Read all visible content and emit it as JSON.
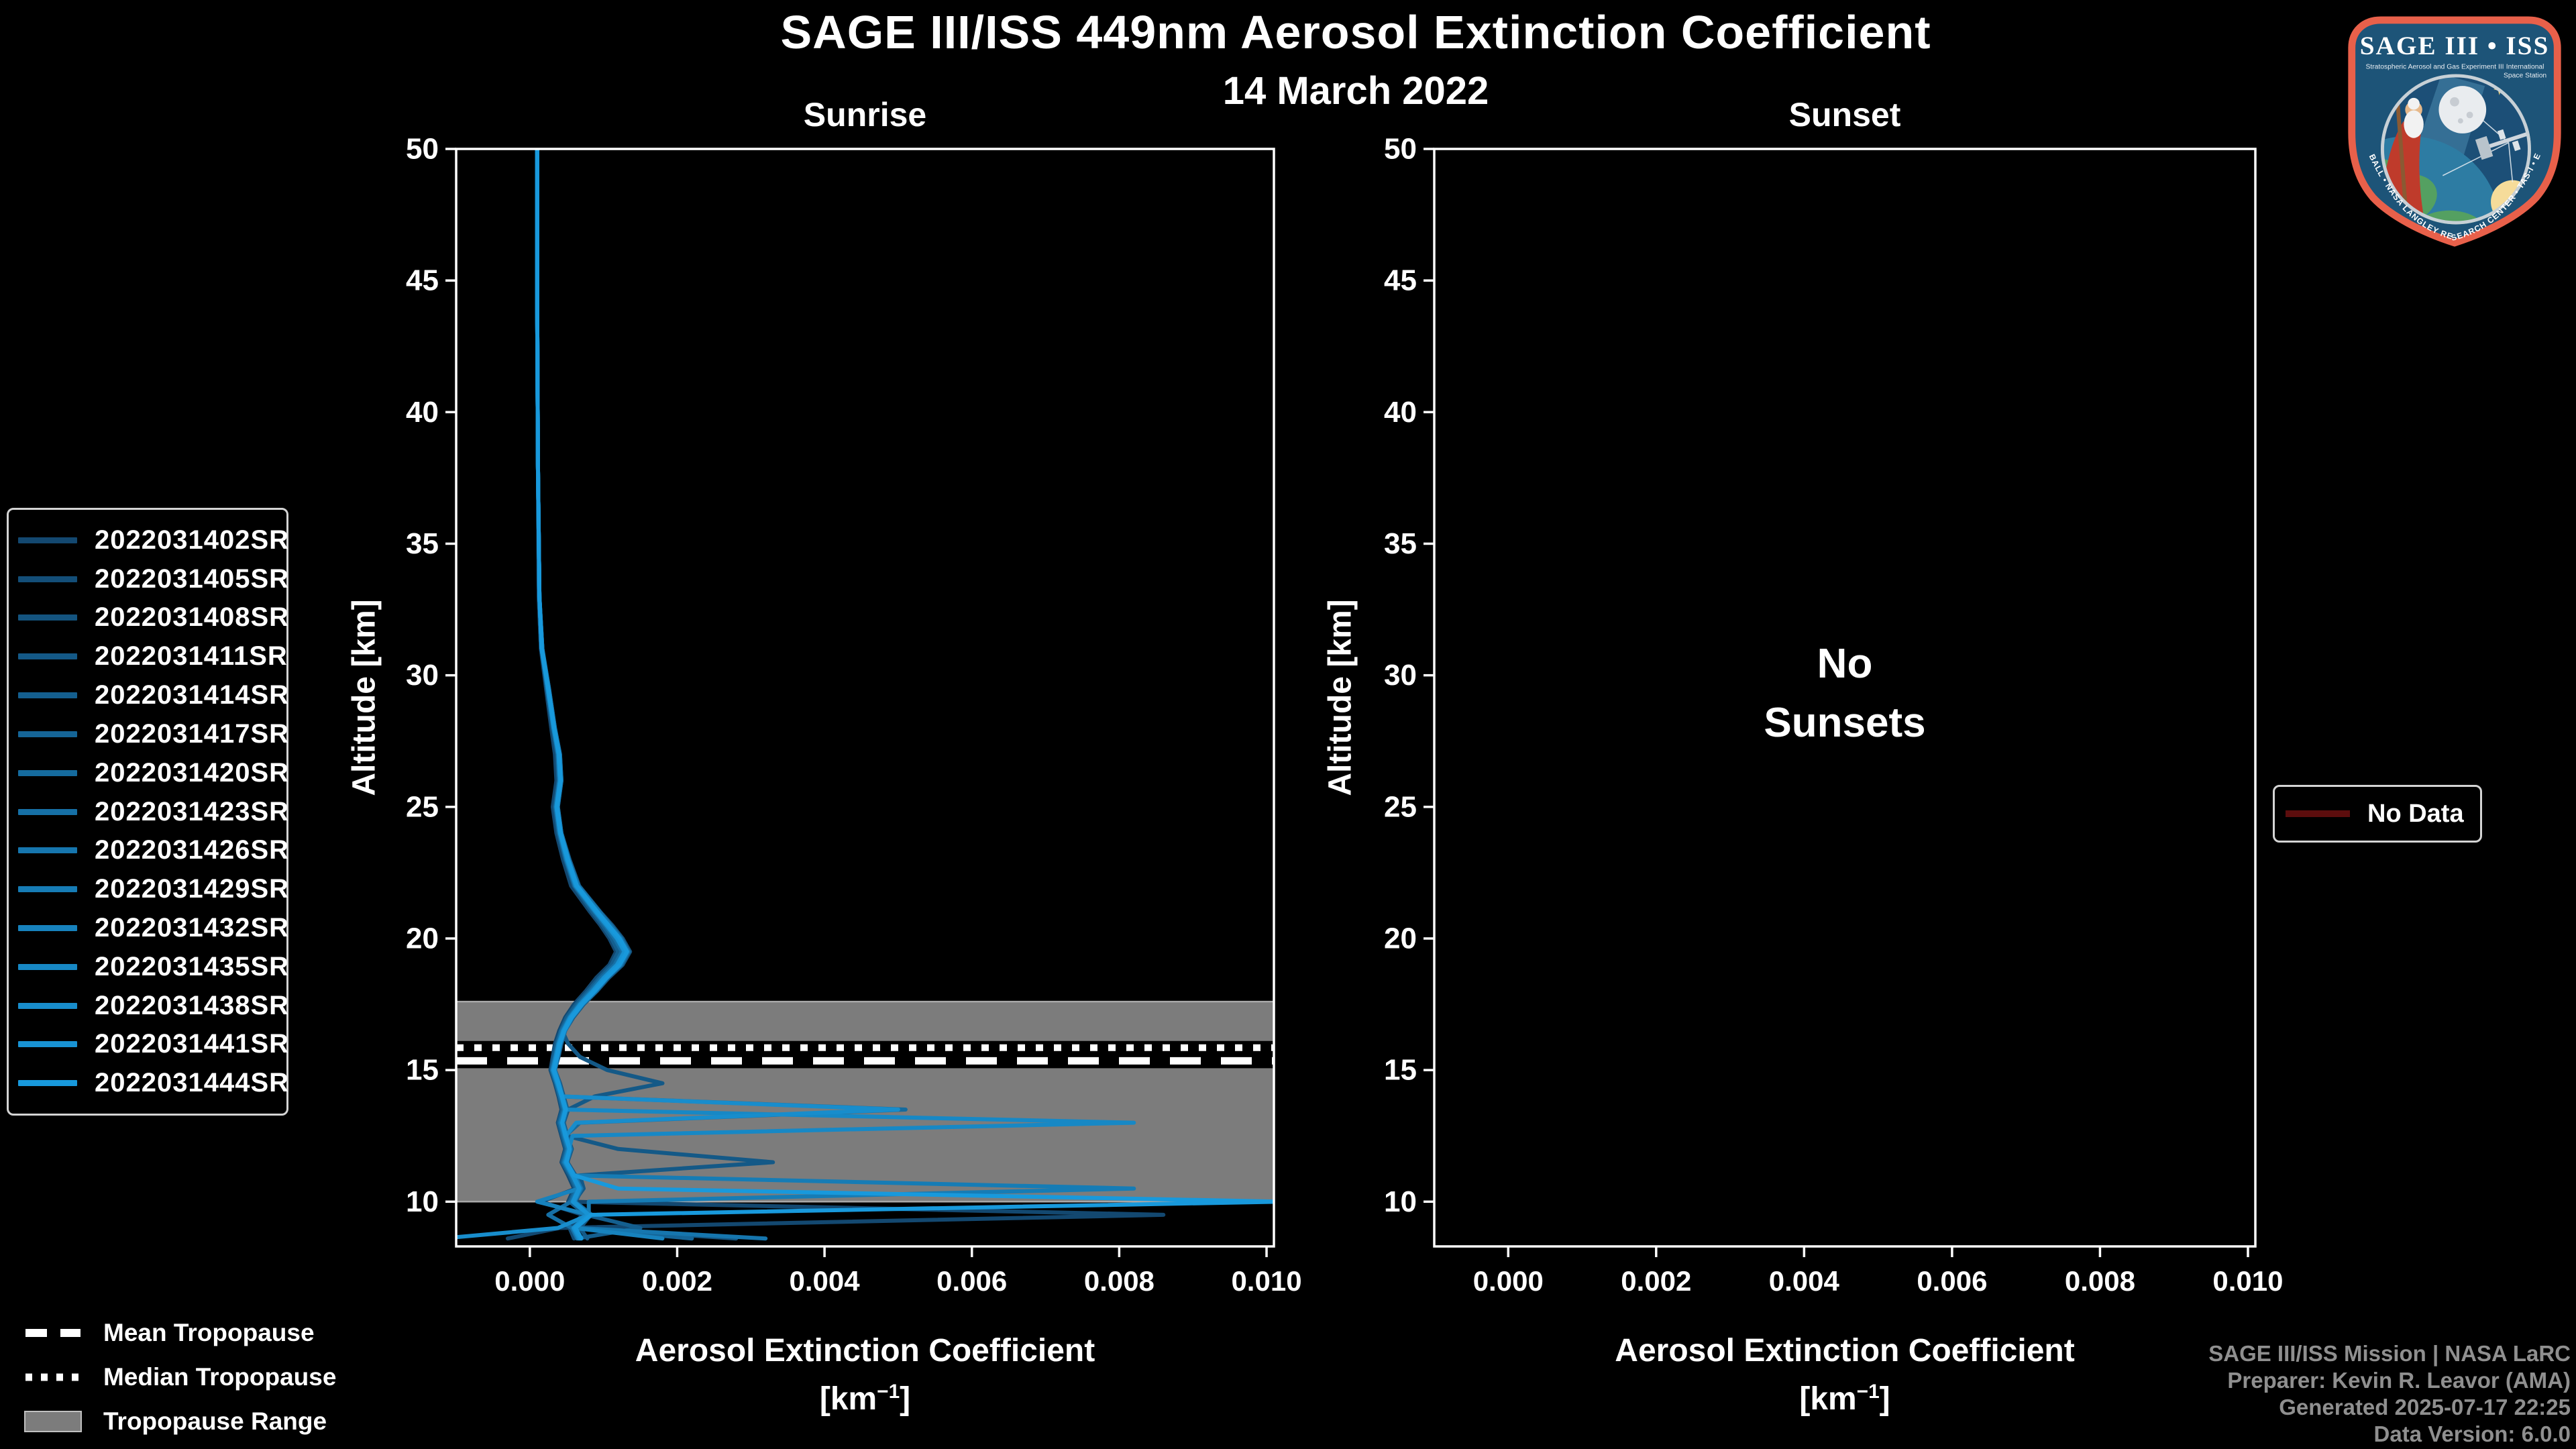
{
  "colors": {
    "background": "#000000",
    "foreground": "#ffffff",
    "tropopause_band": "#7c7c7c",
    "band_edge": "#a8a8a8",
    "legend_border": "#d4d4d4",
    "no_data_line": "#5c0d0d",
    "footer_text": "#8f8f8f"
  },
  "legends": {
    "tropopause": {
      "mean_label": "Mean Tropopause",
      "median_label": "Median Tropopause",
      "range_label": "Tropopause Range"
    },
    "no_data": {
      "label": "No Data",
      "line_color": "#5c0d0d"
    }
  },
  "footer": {
    "lines": [
      "SAGE III/ISS Mission | NASA LaRC",
      "Preparer: Kevin R. Leavor (AMA)",
      "Generated 2025-07-17 22:25",
      "Data Version: 6.0.0"
    ]
  },
  "logo": {
    "title": "SAGE III • ISS",
    "subtitle_left": "Stratospheric Aerosol and Gas Experiment III",
    "subtitle_right_1": "International",
    "subtitle_right_2": "Space Station",
    "bottom_text": "BALL • NASA LANGLEY RESEARCH CENTER • TAS-I • ESA",
    "border_color": "#e8604a",
    "field_color": "#1d5478"
  },
  "chart_data": {
    "type": "line",
    "title": "SAGE III/ISS 449nm Aerosol Extinction Coefficient",
    "subtitle": "14 March 2022",
    "xlabel": "Aerosol Extinction Coefficient",
    "xlabel_unit_prefix": "[km",
    "xlabel_unit_sup": "−1",
    "xlabel_unit_suffix": "]",
    "ylabel": "Altitude [km]",
    "xlim": [
      -0.001,
      0.0101
    ],
    "ylim": [
      8.3,
      50
    ],
    "xticks": [
      0,
      0.002,
      0.004,
      0.006,
      0.008,
      0.01
    ],
    "xtick_labels": [
      "0.000",
      "0.002",
      "0.004",
      "0.006",
      "0.008",
      "0.010"
    ],
    "yticks": [
      10,
      15,
      20,
      25,
      30,
      35,
      40,
      45,
      50
    ],
    "grid": false,
    "values_scale": 0.001,
    "altitudes_km": [
      50,
      44,
      38,
      33,
      31,
      29.5,
      28,
      27,
      26,
      25,
      24,
      23,
      22,
      21,
      20.5,
      20,
      19.5,
      19,
      18.5,
      18,
      17.5,
      17,
      16.5,
      16,
      15.5,
      15,
      14.5,
      14,
      13.5,
      13,
      12.5,
      12,
      11.5,
      11,
      10.5,
      10,
      9.5,
      9,
      8.6
    ],
    "panels": [
      {
        "title": "Sunrise",
        "tropopause": {
          "mean_km": 15.35,
          "median_km": 15.85,
          "range_km": [
            10.0,
            17.6
          ]
        },
        "series": [
          {
            "name": "2022031402SR",
            "color": "#134870",
            "values_x1e3": [
              0.1,
              0.1,
              0.11,
              0.12,
              0.15,
              0.22,
              0.29,
              0.34,
              0.36,
              0.31,
              0.36,
              0.45,
              0.56,
              0.82,
              0.96,
              1.08,
              1.17,
              1.08,
              0.9,
              0.76,
              0.6,
              0.48,
              0.4,
              0.34,
              0.31,
              0.28,
              0.34,
              0.39,
              0.43,
              0.38,
              0.43,
              0.48,
              0.43,
              0.52,
              0.6,
              0.52,
              8.6,
              0.4,
              -0.3
            ]
          },
          {
            "name": "2022031405SR",
            "color": "#134E78",
            "values_x1e3": [
              0.1,
              0.1,
              0.11,
              0.13,
              0.16,
              0.23,
              0.31,
              0.37,
              0.39,
              0.33,
              0.38,
              0.48,
              0.6,
              0.86,
              1.0,
              1.13,
              1.22,
              1.12,
              0.95,
              0.8,
              0.64,
              0.51,
              0.42,
              0.37,
              0.33,
              0.3,
              0.36,
              0.41,
              0.45,
              0.4,
              0.45,
              0.5,
              0.45,
              0.55,
              0.63,
              0.15,
              0.72,
              0.54,
              0.6
            ]
          },
          {
            "name": "2022031408SR",
            "color": "#14547F",
            "values_x1e3": [
              0.1,
              0.1,
              0.11,
              0.13,
              0.17,
              0.26,
              0.34,
              0.41,
              0.43,
              0.38,
              0.43,
              0.54,
              0.67,
              0.96,
              1.12,
              1.26,
              1.36,
              1.26,
              1.07,
              0.91,
              0.73,
              0.59,
              0.48,
              0.43,
              0.39,
              0.34,
              0.41,
              0.46,
              0.51,
              0.46,
              0.51,
              0.57,
              0.51,
              0.62,
              0.71,
              0.62,
              0.84,
              0.64,
              2.8
            ]
          },
          {
            "name": "2022031411SR",
            "color": "#145987",
            "values_x1e3": [
              0.1,
              0.1,
              0.11,
              0.13,
              0.16,
              0.24,
              0.32,
              0.38,
              0.4,
              0.35,
              0.4,
              0.5,
              0.62,
              0.89,
              1.04,
              1.17,
              1.27,
              1.17,
              0.99,
              0.84,
              0.67,
              0.54,
              0.44,
              0.52,
              0.68,
              1.05,
              1.8,
              0.88,
              0.52,
              0.46,
              0.5,
              1.2,
              3.3,
              0.68,
              0.73,
              0.6,
              0.83,
              0.68,
              0.78
            ]
          },
          {
            "name": "2022031414SR",
            "color": "#145F8F",
            "values_x1e3": [
              0.1,
              0.1,
              0.11,
              0.13,
              0.16,
              0.23,
              0.31,
              0.37,
              0.39,
              0.34,
              0.39,
              0.48,
              0.6,
              0.85,
              0.99,
              1.11,
              1.2,
              1.11,
              0.94,
              0.79,
              0.63,
              0.5,
              0.42,
              0.36,
              0.32,
              0.29,
              0.35,
              0.4,
              0.44,
              0.39,
              0.44,
              0.49,
              0.44,
              0.54,
              0.62,
              0.54,
              0.76,
              1.5,
              0.64
            ]
          },
          {
            "name": "2022031417SR",
            "color": "#156597",
            "values_x1e3": [
              0.1,
              0.1,
              0.11,
              0.13,
              0.17,
              0.25,
              0.33,
              0.4,
              0.42,
              0.37,
              0.42,
              0.52,
              0.65,
              0.93,
              1.08,
              1.22,
              1.32,
              1.22,
              1.03,
              0.88,
              0.7,
              0.57,
              0.47,
              0.41,
              0.37,
              0.33,
              0.39,
              0.44,
              0.49,
              0.44,
              0.49,
              0.54,
              0.49,
              0.59,
              0.68,
              0.59,
              0.81,
              0.61,
              2.2
            ]
          },
          {
            "name": "2022031420SR",
            "color": "#156B9E",
            "values_x1e3": [
              0.1,
              0.1,
              0.11,
              0.13,
              0.16,
              0.24,
              0.32,
              0.39,
              0.41,
              0.36,
              0.41,
              0.51,
              0.63,
              0.9,
              1.05,
              1.19,
              1.29,
              1.19,
              1.01,
              0.85,
              0.68,
              0.55,
              0.45,
              0.39,
              0.35,
              0.31,
              0.37,
              0.42,
              5.1,
              0.68,
              0.48,
              0.53,
              0.48,
              0.58,
              0.66,
              0.58,
              0.79,
              0.59,
              0.66
            ]
          },
          {
            "name": "2022031423SR",
            "color": "#1670A6",
            "values_x1e3": [
              0.1,
              0.1,
              0.11,
              0.13,
              0.16,
              0.24,
              0.32,
              0.38,
              0.4,
              0.35,
              0.4,
              0.49,
              0.61,
              0.88,
              1.02,
              1.15,
              1.25,
              1.15,
              0.97,
              0.82,
              0.66,
              0.53,
              0.43,
              0.38,
              0.34,
              0.3,
              0.36,
              0.41,
              0.46,
              0.41,
              0.46,
              0.51,
              0.46,
              0.56,
              0.64,
              0.56,
              0.25,
              0.57,
              0.64
            ]
          },
          {
            "name": "2022031426SR",
            "color": "#1676AE",
            "values_x1e3": [
              0.1,
              0.1,
              0.11,
              0.13,
              0.17,
              0.26,
              0.34,
              0.41,
              0.43,
              0.38,
              0.43,
              0.53,
              0.66,
              0.95,
              1.1,
              1.24,
              1.34,
              1.24,
              1.05,
              0.9,
              0.72,
              0.58,
              0.48,
              0.42,
              0.38,
              0.34,
              0.4,
              0.45,
              0.5,
              0.45,
              0.5,
              0.56,
              0.5,
              0.61,
              0.7,
              0.61,
              0.83,
              0.63,
              3.2
            ]
          },
          {
            "name": "2022031429SR",
            "color": "#167CB5",
            "values_x1e3": [
              0.1,
              0.1,
              0.11,
              0.13,
              0.16,
              0.24,
              0.32,
              0.39,
              0.41,
              0.36,
              0.41,
              0.5,
              0.62,
              0.89,
              1.04,
              1.18,
              1.28,
              1.18,
              1.0,
              0.84,
              0.68,
              0.54,
              0.45,
              0.39,
              0.35,
              0.31,
              0.37,
              0.43,
              0.47,
              0.42,
              0.47,
              0.52,
              0.47,
              0.57,
              8.2,
              0.8,
              0.8,
              0.6,
              0.68
            ]
          },
          {
            "name": "2022031432SR",
            "color": "#1782BD",
            "values_x1e3": [
              0.1,
              0.1,
              0.11,
              0.13,
              0.16,
              0.25,
              0.33,
              0.39,
              0.41,
              0.36,
              0.41,
              0.51,
              0.63,
              0.91,
              1.06,
              1.19,
              1.29,
              1.2,
              1.01,
              0.86,
              0.69,
              0.55,
              0.46,
              0.4,
              0.36,
              0.32,
              0.38,
              0.43,
              0.48,
              0.43,
              0.48,
              0.53,
              0.48,
              0.58,
              0.67,
              0.1,
              0.8,
              0.6,
              1.8
            ]
          },
          {
            "name": "2022031435SR",
            "color": "#1788C5",
            "values_x1e3": [
              0.1,
              0.1,
              0.11,
              0.13,
              0.16,
              0.24,
              0.32,
              0.39,
              0.41,
              0.36,
              0.41,
              0.5,
              0.62,
              0.9,
              1.04,
              1.18,
              1.28,
              1.18,
              1.0,
              0.85,
              0.68,
              0.55,
              0.45,
              0.39,
              0.35,
              0.31,
              0.37,
              0.43,
              0.48,
              8.2,
              0.58,
              0.53,
              0.48,
              0.58,
              0.66,
              0.58,
              0.79,
              0.59,
              0.66
            ]
          },
          {
            "name": "2022031438SR",
            "color": "#188DCC",
            "values_x1e3": [
              0.1,
              0.1,
              0.11,
              0.13,
              0.17,
              0.25,
              0.33,
              0.4,
              0.42,
              0.37,
              0.42,
              0.52,
              0.64,
              0.92,
              1.07,
              1.21,
              1.31,
              1.21,
              1.02,
              0.87,
              0.7,
              0.56,
              0.46,
              0.41,
              0.37,
              0.32,
              0.38,
              0.44,
              5.0,
              0.63,
              0.49,
              0.54,
              0.49,
              0.59,
              0.68,
              0.6,
              0.8,
              0.38,
              -1.2
            ]
          },
          {
            "name": "2022031441SR",
            "color": "#1893D4",
            "values_x1e3": [
              0.1,
              0.1,
              0.11,
              0.13,
              0.16,
              0.25,
              0.33,
              0.39,
              0.41,
              0.36,
              0.41,
              0.51,
              0.63,
              0.9,
              1.05,
              1.19,
              1.29,
              1.19,
              1.01,
              0.86,
              0.69,
              0.55,
              0.46,
              0.4,
              0.36,
              0.32,
              0.38,
              0.43,
              0.48,
              0.44,
              0.48,
              0.54,
              0.49,
              0.58,
              0.67,
              0.59,
              0.8,
              0.6,
              0.68
            ]
          },
          {
            "name": "2022031444SR",
            "color": "#1899DC",
            "values_x1e3": [
              0.1,
              0.1,
              0.11,
              0.13,
              0.16,
              0.25,
              0.33,
              0.4,
              0.42,
              0.37,
              0.42,
              0.52,
              0.64,
              0.92,
              1.07,
              1.22,
              1.32,
              1.22,
              1.04,
              0.88,
              0.71,
              0.57,
              0.47,
              0.41,
              0.37,
              0.33,
              0.39,
              0.44,
              0.49,
              0.44,
              0.49,
              0.54,
              0.5,
              0.6,
              1.2,
              10.2,
              0.83,
              0.62,
              0.7
            ]
          }
        ]
      },
      {
        "title": "Sunset",
        "series": [],
        "no_data_lines": [
          "No",
          "Sunsets"
        ]
      }
    ]
  }
}
